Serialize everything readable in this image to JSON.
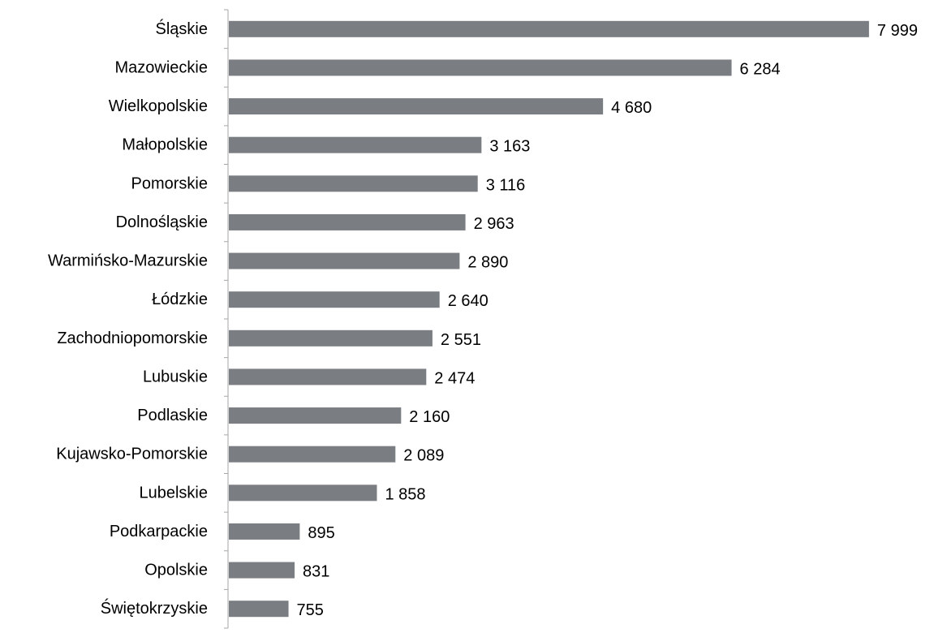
{
  "chart_data": {
    "type": "bar",
    "orientation": "horizontal",
    "title": "",
    "xlabel": "",
    "ylabel": "",
    "categories": [
      "Śląskie",
      "Mazowieckie",
      "Wielkopolskie",
      "Małopolskie",
      "Pomorskie",
      "Dolnośląskie",
      "Warmińsko-Mazurskie",
      "Łódzkie",
      "Zachodniopomorskie",
      "Lubuskie",
      "Podlaskie",
      "Kujawsko-Pomorskie",
      "Lubelskie",
      "Podkarpackie",
      "Opolskie",
      "Świętokrzyskie"
    ],
    "values": [
      7999,
      6284,
      4680,
      3163,
      3116,
      2963,
      2890,
      2640,
      2551,
      2474,
      2160,
      2089,
      1858,
      895,
      831,
      755
    ],
    "value_labels": [
      "7 999",
      "6 284",
      "4 680",
      "3 163",
      "3 116",
      "2 963",
      "2 890",
      "2 640",
      "2 551",
      "2 474",
      "2 160",
      "2 089",
      "1 858",
      "895",
      "831",
      "755"
    ],
    "xlim": [
      0,
      8000
    ],
    "bar_color": "#7a7e82",
    "axis_color": "#a6a6a6",
    "grid": false,
    "legend": "none"
  }
}
